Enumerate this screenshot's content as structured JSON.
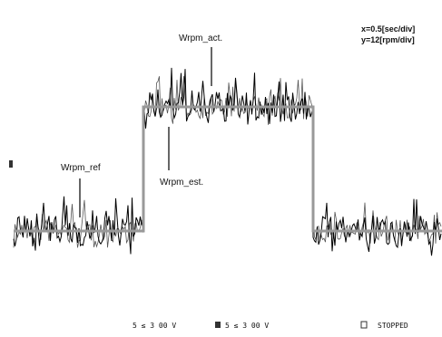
{
  "annotations": {
    "actual": "Wrpm_act.",
    "reference": "Wrpm_ref",
    "estimated": "Wrpm_est."
  },
  "scale": {
    "x": "x=0.5[sec/div]",
    "y": "y=12[rpm/div]"
  },
  "status_bar": {
    "channel_1": "5 ≤ 3 00 V",
    "channel_2": "5 ≤ 3 00 V",
    "state": "STOPPED"
  }
}
